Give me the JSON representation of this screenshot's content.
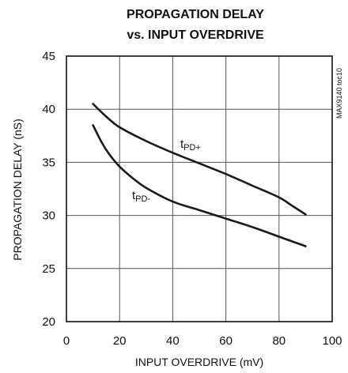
{
  "chart_data": {
    "type": "line",
    "title": [
      "PROPAGATION DELAY",
      "vs. INPUT OVERDRIVE"
    ],
    "xlabel": "INPUT OVERDRIVE (mV)",
    "ylabel": "PROPAGATION DELAY (nS)",
    "xlim": [
      0,
      100
    ],
    "ylim": [
      20,
      45
    ],
    "x_ticks": [
      "0",
      "20",
      "40",
      "60",
      "80",
      "100"
    ],
    "y_ticks": [
      "20",
      "25",
      "30",
      "35",
      "40",
      "45"
    ],
    "grid": true,
    "side_note": "MAX9140 toc10",
    "series": [
      {
        "name_main": "t",
        "name_sub": "PD+",
        "x": [
          10,
          15,
          20,
          30,
          40,
          50,
          60,
          70,
          80,
          85,
          90
        ],
        "y": [
          40.5,
          39.3,
          38.3,
          37.0,
          35.9,
          34.9,
          33.9,
          32.8,
          31.7,
          30.9,
          30.1
        ]
      },
      {
        "name_main": "t",
        "name_sub": "PD-",
        "x": [
          10,
          13,
          16,
          20,
          25,
          30,
          40,
          50,
          60,
          70,
          80,
          90
        ],
        "y": [
          38.5,
          37.0,
          35.8,
          34.6,
          33.5,
          32.6,
          31.3,
          30.5,
          29.7,
          28.9,
          28.0,
          27.1
        ]
      }
    ]
  }
}
